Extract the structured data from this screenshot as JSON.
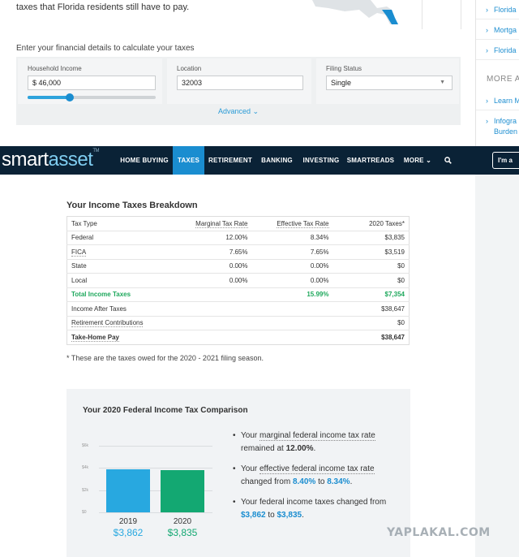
{
  "top": {
    "intro": "taxes that Florida residents still have to pay.",
    "calc_title": "Enter your financial details to calculate your taxes",
    "fields": {
      "income": {
        "label": "Household Income",
        "value": "$ 46,000",
        "slider_level": 0.33
      },
      "location": {
        "label": "Location",
        "value": "32003"
      },
      "filing": {
        "label": "Filing Status",
        "value": "Single"
      }
    },
    "advanced": "Advanced ⌄"
  },
  "sidebar": {
    "links": [
      "Florida",
      "Mortga",
      "Florida"
    ],
    "more_heading": "MORE A",
    "more_links": [
      "Learn M",
      "Infogra",
      "Burden"
    ]
  },
  "nav": {
    "logo_smart": "smart",
    "logo_asset": "asset",
    "logo_tm": "TM",
    "items": [
      "HOME BUYING",
      "TAXES",
      "RETIREMENT",
      "BANKING",
      "INVESTING",
      "SMARTREADS",
      "MORE ⌄"
    ],
    "active": "TAXES",
    "cta": "I'm a"
  },
  "breakdown": {
    "title": "Your Income Taxes Breakdown",
    "headers": [
      "Tax Type",
      "Marginal Tax Rate",
      "Effective Tax Rate",
      "2020 Taxes*"
    ],
    "rows": [
      [
        "Federal",
        "12.00%",
        "8.34%",
        "$3,835"
      ],
      [
        "FICA",
        "7.65%",
        "7.65%",
        "$3,519"
      ],
      [
        "State",
        "0.00%",
        "0.00%",
        "$0"
      ],
      [
        "Local",
        "0.00%",
        "0.00%",
        "$0"
      ]
    ],
    "total": [
      "Total Income Taxes",
      "",
      "15.99%",
      "$7,354"
    ],
    "after": [
      "Income After Taxes",
      "$38,647"
    ],
    "retirement": [
      "Retirement Contributions",
      "$0"
    ],
    "takehome": [
      "Take-Home Pay",
      "$38,647"
    ],
    "footnote": "* These are the taxes owed for the 2020 - 2021 filing season."
  },
  "comparison": {
    "title": "Your 2020 Federal Income Tax Comparison",
    "chart_data": {
      "type": "bar",
      "categories": [
        "2019",
        "2020"
      ],
      "values": [
        3862,
        3835
      ],
      "value_labels": [
        "$3,862",
        "$3,835"
      ],
      "ylim": [
        0,
        6000
      ],
      "yticks": [
        "$6k",
        "$4k",
        "$2k",
        "$0"
      ],
      "colors": [
        "#28a8e0",
        "#13a872"
      ],
      "title": "",
      "xlabel": "",
      "ylabel": ""
    },
    "bullets": [
      {
        "pre": "Your ",
        "link": "marginal federal income tax rate",
        "mid": " remained at ",
        "v1": "12.00%",
        "post": "."
      },
      {
        "pre": "Your ",
        "link": "effective federal income tax rate",
        "mid": " changed from ",
        "v1": "8.40%",
        "to": " to ",
        "v2": "8.34%",
        "post": "."
      },
      {
        "pre": "Your federal income taxes changed from ",
        "v1": "$3,862",
        "to": " to ",
        "v2": "$3,835",
        "post": "."
      }
    ]
  },
  "watermark": "YAPLAKAL.COM"
}
